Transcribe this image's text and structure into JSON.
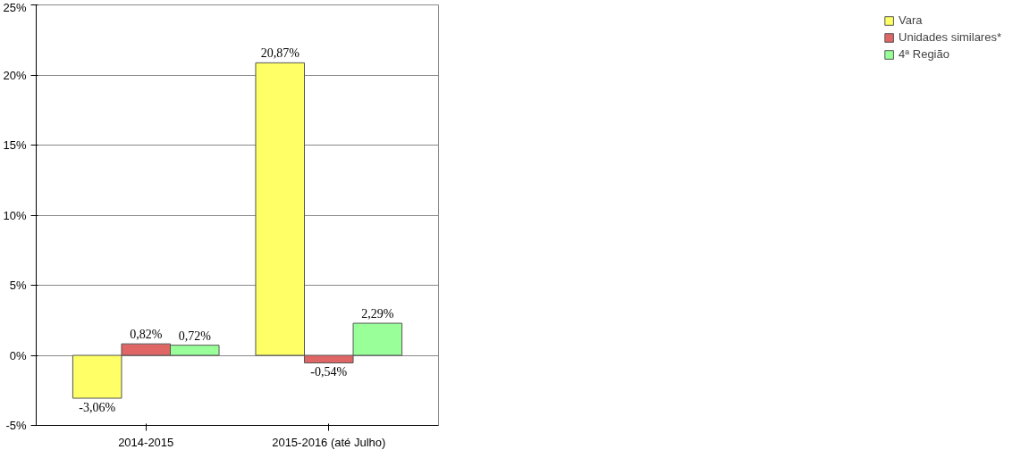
{
  "chart_data": {
    "type": "bar",
    "categories": [
      "2014-2015",
      "2015-2016 (até Julho)"
    ],
    "series": [
      {
        "name": "Vara",
        "color": "#ffff66",
        "values": [
          -3.06,
          20.87
        ],
        "value_labels": [
          "-3,06%",
          "20,87%"
        ]
      },
      {
        "name": "Unidades similares*",
        "color": "#e06666",
        "values": [
          0.82,
          -0.54
        ],
        "value_labels": [
          "0,82%",
          "-0,54%"
        ]
      },
      {
        "name": "4ª Região",
        "color": "#99ff99",
        "values": [
          0.72,
          2.29
        ],
        "value_labels": [
          "0,72%",
          "2,29%"
        ]
      }
    ],
    "ylim": [
      -5,
      25
    ],
    "yticks": [
      {
        "value": -5,
        "label": "-5%"
      },
      {
        "value": 0,
        "label": "0%"
      },
      {
        "value": 5,
        "label": "5%"
      },
      {
        "value": 10,
        "label": "10%"
      },
      {
        "value": 15,
        "label": "15%"
      },
      {
        "value": 20,
        "label": "20%"
      },
      {
        "value": 25,
        "label": "25%"
      }
    ],
    "grid": "y",
    "legend": "right"
  }
}
